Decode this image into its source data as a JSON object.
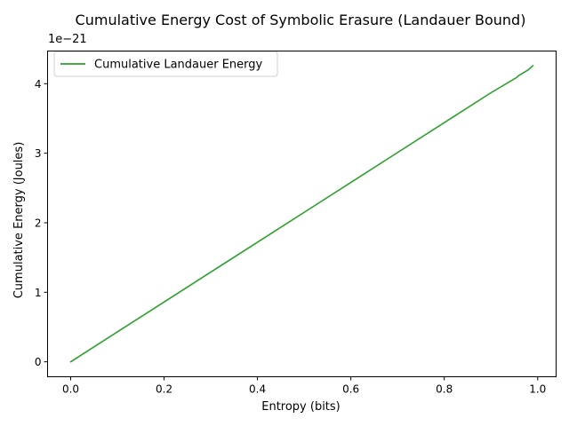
{
  "chart_data": {
    "type": "line",
    "title": "Cumulative Energy Cost of Symbolic Erasure (Landauer Bound)",
    "xlabel": "Entropy (bits)",
    "ylabel": "Cumulative Energy (Joules)",
    "y_offset_label": "1e−21",
    "xlim": [
      -0.0495,
      1.0395
    ],
    "ylim": [
      -0.215,
      4.47
    ],
    "x_ticks": [
      0.0,
      0.2,
      0.4,
      0.6,
      0.8,
      1.0
    ],
    "x_tick_labels": [
      "0.0",
      "0.2",
      "0.4",
      "0.6",
      "0.8",
      "1.0"
    ],
    "y_ticks": [
      0,
      1,
      2,
      3,
      4
    ],
    "y_tick_labels": [
      "0",
      "1",
      "2",
      "3",
      "4"
    ],
    "grid": false,
    "legend_position": "upper-left",
    "series": [
      {
        "name": "Cumulative Landauer Energy",
        "color": "#2ca02c",
        "x": [
          0.0,
          0.1,
          0.2,
          0.3,
          0.4,
          0.5,
          0.6,
          0.7,
          0.8,
          0.9,
          0.955,
          0.958,
          0.97,
          0.98,
          0.99
        ],
        "y": [
          0.0,
          0.43,
          0.86,
          1.29,
          1.72,
          2.15,
          2.58,
          3.01,
          3.44,
          3.87,
          4.09,
          4.11,
          4.16,
          4.2,
          4.26
        ]
      }
    ]
  }
}
